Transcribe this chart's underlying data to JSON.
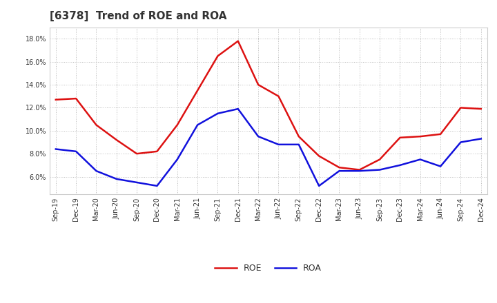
{
  "title": "[6378]  Trend of ROE and ROA",
  "labels": [
    "Sep-19",
    "Dec-19",
    "Mar-20",
    "Jun-20",
    "Sep-20",
    "Dec-20",
    "Mar-21",
    "Jun-21",
    "Sep-21",
    "Dec-21",
    "Mar-22",
    "Jun-22",
    "Sep-22",
    "Dec-22",
    "Mar-23",
    "Jun-23",
    "Sep-23",
    "Dec-23",
    "Mar-24",
    "Jun-24",
    "Sep-24",
    "Dec-24"
  ],
  "roe": [
    12.7,
    12.8,
    10.5,
    9.2,
    8.0,
    8.2,
    10.5,
    13.5,
    16.5,
    17.8,
    14.0,
    13.0,
    9.5,
    7.8,
    6.8,
    6.6,
    7.5,
    9.4,
    9.5,
    9.7,
    12.0,
    11.9
  ],
  "roa": [
    8.4,
    8.2,
    6.5,
    5.8,
    5.5,
    5.2,
    7.5,
    10.5,
    11.5,
    11.9,
    9.5,
    8.8,
    8.8,
    5.2,
    6.5,
    6.5,
    6.6,
    7.0,
    7.5,
    6.9,
    9.0,
    9.3
  ],
  "roe_color": "#dd1111",
  "roa_color": "#1111dd",
  "ylim_min": 4.5,
  "ylim_max": 19.0,
  "yticks": [
    6.0,
    8.0,
    10.0,
    12.0,
    14.0,
    16.0,
    18.0
  ],
  "bg_color": "#ffffff",
  "plot_bg_color": "#ffffff",
  "grid_color": "#bbbbbb",
  "title_fontsize": 11,
  "tick_fontsize": 7,
  "legend_labels": [
    "ROE",
    "ROA"
  ]
}
